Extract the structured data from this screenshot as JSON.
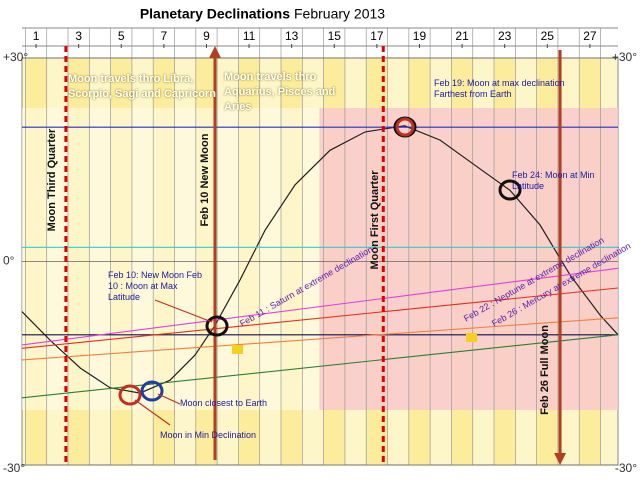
{
  "chart_data": {
    "type": "line",
    "title": "Planetary Declinations",
    "subtitle": "February 2013",
    "xlim": [
      0.34,
      28.32
    ],
    "xticks": [
      1,
      3,
      5,
      7,
      9,
      11,
      13,
      15,
      17,
      19,
      21,
      23,
      25,
      27
    ],
    "ylim": [
      -30,
      30
    ],
    "yticks": [
      {
        "value": -30,
        "label": "-30°"
      },
      {
        "value": 0,
        "label": "0°"
      },
      {
        "value": 30,
        "label": "+30°"
      }
    ],
    "grid": true,
    "series": [
      {
        "color": "#222222",
        "x": [
          0.34,
          1.66,
          3.07,
          4.47,
          5.88,
          7.29,
          8.46,
          9.4,
          10.58,
          11.75,
          13.16,
          14.8,
          16.45,
          18.3,
          19.97,
          21.6,
          23.25,
          24.66,
          26.07,
          27.48,
          28.32
        ],
        "values": [
          -7.4,
          -11.6,
          -15.7,
          -18.6,
          -19.4,
          -17.5,
          -13.8,
          -9.4,
          -2.7,
          4.6,
          11.3,
          16.4,
          19.1,
          20.0,
          17.9,
          14.2,
          10.5,
          5.4,
          -2.0,
          -7.9,
          -10.8
        ]
      },
      {
        "color": "#1f2fd0",
        "x": [
          0.34,
          28.32
        ],
        "values": [
          19.8,
          19.8
        ]
      },
      {
        "color": "#33cccc",
        "x": [
          0.34,
          28.32
        ],
        "values": [
          2.1,
          2.1
        ]
      },
      {
        "color": "#101050",
        "x": [
          0.34,
          28.32
        ],
        "values": [
          -10.8,
          -10.8
        ]
      },
      {
        "color": "#e040e0",
        "x": [
          0.34,
          28.32
        ],
        "values": [
          -12.3,
          -1.0
        ]
      },
      {
        "color": "#e03020",
        "x": [
          0.34,
          28.32
        ],
        "values": [
          -12.8,
          -3.9
        ]
      },
      {
        "color": "#f08040",
        "x": [
          0.34,
          28.32
        ],
        "values": [
          -14.5,
          -8.3
        ]
      },
      {
        "color": "#2e7d32",
        "x": [
          0.34,
          28.32
        ],
        "values": [
          -20.1,
          -10.8
        ]
      }
    ],
    "markers": [
      {
        "x": 2.4,
        "label": "Moon Third Quarter",
        "style": "dashed"
      },
      {
        "x": 9.4,
        "label": "Feb 10 New Moon",
        "style": "arrow"
      },
      {
        "x": 17.3,
        "label": "Moon First Quarter",
        "style": "dashed"
      },
      {
        "x": 25.6,
        "label": "Feb 26 Full Moon",
        "style": "arrow"
      }
    ],
    "annotations": [
      "Moon travels thro Libra, Scorpio, Sagi and Capricorn",
      "Moon travels thro Aquarius, Pisces and Aries",
      "Feb 19: Moon at max declination Farthest from Earth",
      "Feb 24: Moon at Min  Latitude",
      "Feb 10: New Moon Feb 10 : Moon at Max Latitude",
      "Feb 11 : Saturn at extreme declination",
      "Feb 22 : Neptune at extreme declination",
      "Feb 26 : Mercury at extreme declination",
      "Moon closest to Earth",
      "Moon in Min Declination"
    ]
  }
}
